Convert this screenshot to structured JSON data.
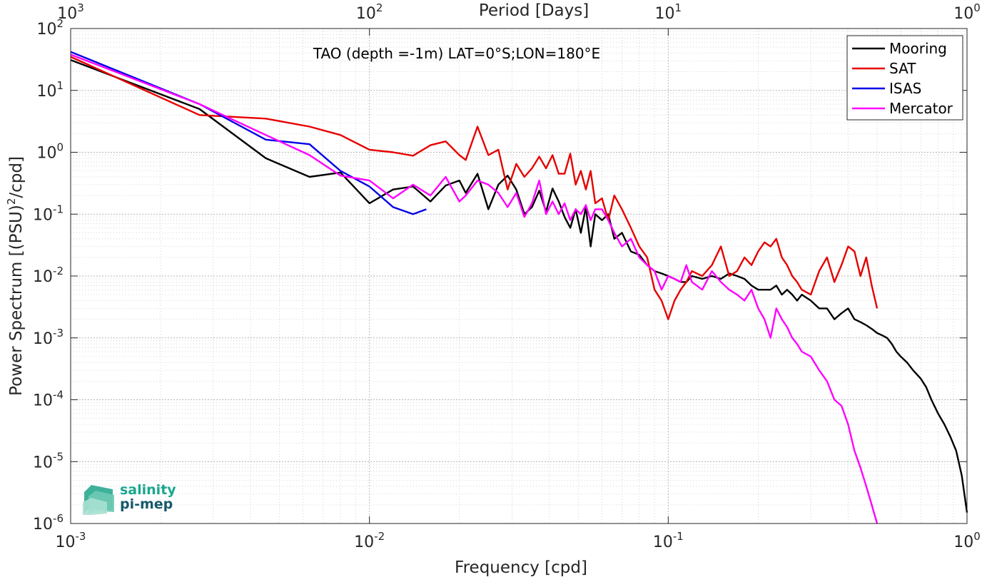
{
  "chart_data": {
    "type": "line",
    "title": "TAO (depth =-1m) LAT=0°S;LON=180°E",
    "xlabel": "Frequency [cpd]",
    "ylabel": "Power Spectrum [(PSU)",
    "ylabel_sup": "2",
    "ylabel_tail": "/cpd]",
    "top_xlabel": "Period [Days]",
    "x_scale": "log",
    "y_scale": "log",
    "xlim": [
      0.001,
      1
    ],
    "ylim": [
      1e-06,
      100
    ],
    "grid": true,
    "minor_grid": true,
    "legend_position": "top-right",
    "x_ticks": [
      {
        "value": 0.001,
        "base": "10",
        "exp": "-3"
      },
      {
        "value": 0.01,
        "base": "10",
        "exp": "-2"
      },
      {
        "value": 0.1,
        "base": "10",
        "exp": "-1"
      },
      {
        "value": 1,
        "base": "10",
        "exp": "0"
      }
    ],
    "y_ticks": [
      {
        "value": 100,
        "base": "10",
        "exp": "2"
      },
      {
        "value": 10,
        "base": "10",
        "exp": "1"
      },
      {
        "value": 1,
        "base": "10",
        "exp": "0"
      },
      {
        "value": 0.1,
        "base": "10",
        "exp": "-1"
      },
      {
        "value": 0.01,
        "base": "10",
        "exp": "-2"
      },
      {
        "value": 0.001,
        "base": "10",
        "exp": "-3"
      },
      {
        "value": 0.0001,
        "base": "10",
        "exp": "-4"
      },
      {
        "value": 1e-05,
        "base": "10",
        "exp": "-5"
      },
      {
        "value": 1e-06,
        "base": "10",
        "exp": "-6"
      }
    ],
    "top_ticks": [
      {
        "value": 0.001,
        "base": "10",
        "exp": "3"
      },
      {
        "value": 0.01,
        "base": "10",
        "exp": "2"
      },
      {
        "value": 0.1,
        "base": "10",
        "exp": "1"
      },
      {
        "value": 1,
        "base": "10",
        "exp": "0"
      }
    ],
    "series": [
      {
        "name": "Mooring",
        "color": "#000000",
        "x": [
          0.001,
          0.0027,
          0.0045,
          0.0063,
          0.008,
          0.01,
          0.012,
          0.014,
          0.016,
          0.018,
          0.02,
          0.021,
          0.023,
          0.025,
          0.027,
          0.029,
          0.031,
          0.033,
          0.035,
          0.037,
          0.039,
          0.041,
          0.043,
          0.045,
          0.047,
          0.049,
          0.051,
          0.053,
          0.055,
          0.057,
          0.06,
          0.063,
          0.066,
          0.07,
          0.075,
          0.08,
          0.085,
          0.09,
          0.095,
          0.1,
          0.105,
          0.11,
          0.115,
          0.12,
          0.13,
          0.14,
          0.15,
          0.16,
          0.17,
          0.18,
          0.19,
          0.2,
          0.21,
          0.22,
          0.23,
          0.24,
          0.25,
          0.26,
          0.27,
          0.28,
          0.3,
          0.32,
          0.34,
          0.36,
          0.38,
          0.4,
          0.42,
          0.44,
          0.46,
          0.48,
          0.5,
          0.52,
          0.54,
          0.56,
          0.58,
          0.6,
          0.63,
          0.66,
          0.7,
          0.73,
          0.76,
          0.8,
          0.84,
          0.88,
          0.92,
          0.96,
          1.0
        ],
        "y": [
          31,
          5.0,
          0.8,
          0.4,
          0.47,
          0.15,
          0.25,
          0.28,
          0.16,
          0.29,
          0.35,
          0.22,
          0.45,
          0.12,
          0.3,
          0.42,
          0.25,
          0.1,
          0.13,
          0.24,
          0.11,
          0.26,
          0.16,
          0.09,
          0.06,
          0.12,
          0.05,
          0.13,
          0.03,
          0.1,
          0.08,
          0.1,
          0.04,
          0.05,
          0.025,
          0.022,
          0.015,
          0.012,
          0.011,
          0.01,
          0.009,
          0.008,
          0.008,
          0.01,
          0.009,
          0.01,
          0.009,
          0.011,
          0.01,
          0.009,
          0.007,
          0.006,
          0.006,
          0.006,
          0.007,
          0.005,
          0.006,
          0.005,
          0.004,
          0.005,
          0.004,
          0.003,
          0.003,
          0.002,
          0.0025,
          0.003,
          0.002,
          0.0018,
          0.0016,
          0.0014,
          0.0012,
          0.0011,
          0.001,
          0.0008,
          0.0006,
          0.0005,
          0.0004,
          0.0003,
          0.00022,
          0.00016,
          0.0001,
          6e-05,
          4e-05,
          2.5e-05,
          1.5e-05,
          6e-06,
          1.5e-06
        ]
      },
      {
        "name": "SAT",
        "color": "#e60000",
        "x": [
          0.001,
          0.0027,
          0.0045,
          0.0063,
          0.008,
          0.01,
          0.012,
          0.014,
          0.016,
          0.018,
          0.02,
          0.021,
          0.023,
          0.025,
          0.027,
          0.029,
          0.031,
          0.033,
          0.035,
          0.037,
          0.039,
          0.041,
          0.043,
          0.045,
          0.047,
          0.049,
          0.051,
          0.053,
          0.055,
          0.057,
          0.06,
          0.063,
          0.066,
          0.07,
          0.075,
          0.08,
          0.085,
          0.09,
          0.095,
          0.1,
          0.105,
          0.11,
          0.115,
          0.12,
          0.13,
          0.14,
          0.15,
          0.16,
          0.17,
          0.18,
          0.19,
          0.2,
          0.21,
          0.22,
          0.23,
          0.24,
          0.25,
          0.26,
          0.27,
          0.28,
          0.3,
          0.32,
          0.34,
          0.36,
          0.38,
          0.4,
          0.42,
          0.44,
          0.46,
          0.48,
          0.5
        ],
        "y": [
          35,
          4.0,
          3.5,
          2.6,
          1.9,
          1.1,
          1.0,
          0.88,
          1.3,
          1.5,
          0.9,
          0.75,
          2.6,
          0.9,
          1.1,
          0.25,
          0.65,
          0.4,
          0.55,
          0.85,
          0.55,
          0.9,
          0.45,
          0.45,
          0.95,
          0.3,
          0.5,
          0.25,
          0.5,
          0.15,
          0.18,
          0.08,
          0.2,
          0.12,
          0.06,
          0.03,
          0.02,
          0.006,
          0.004,
          0.002,
          0.004,
          0.006,
          0.008,
          0.012,
          0.01,
          0.015,
          0.03,
          0.01,
          0.012,
          0.02,
          0.015,
          0.025,
          0.035,
          0.03,
          0.04,
          0.02,
          0.015,
          0.01,
          0.008,
          0.006,
          0.005,
          0.012,
          0.02,
          0.008,
          0.015,
          0.03,
          0.025,
          0.01,
          0.02,
          0.007,
          0.003
        ]
      },
      {
        "name": "ISAS",
        "color": "#0000e6",
        "x": [
          0.001,
          0.0027,
          0.0045,
          0.0063,
          0.008,
          0.01,
          0.012,
          0.014,
          0.0155
        ],
        "y": [
          42,
          6.0,
          1.6,
          1.35,
          0.5,
          0.28,
          0.13,
          0.1,
          0.12
        ]
      },
      {
        "name": "Mercator",
        "color": "#ff00ff",
        "x": [
          0.001,
          0.0027,
          0.0045,
          0.0063,
          0.008,
          0.01,
          0.012,
          0.014,
          0.016,
          0.018,
          0.02,
          0.021,
          0.023,
          0.025,
          0.027,
          0.029,
          0.031,
          0.033,
          0.035,
          0.037,
          0.039,
          0.041,
          0.043,
          0.045,
          0.047,
          0.049,
          0.051,
          0.053,
          0.055,
          0.057,
          0.06,
          0.063,
          0.066,
          0.07,
          0.075,
          0.08,
          0.085,
          0.09,
          0.095,
          0.1,
          0.105,
          0.11,
          0.115,
          0.12,
          0.13,
          0.14,
          0.15,
          0.16,
          0.17,
          0.18,
          0.19,
          0.2,
          0.21,
          0.22,
          0.23,
          0.24,
          0.25,
          0.26,
          0.27,
          0.28,
          0.3,
          0.32,
          0.34,
          0.36,
          0.38,
          0.4,
          0.42,
          0.44,
          0.46,
          0.48,
          0.5
        ],
        "y": [
          38,
          6.0,
          1.9,
          0.9,
          0.42,
          0.35,
          0.18,
          0.3,
          0.2,
          0.4,
          0.16,
          0.2,
          0.35,
          0.3,
          0.22,
          0.13,
          0.22,
          0.09,
          0.15,
          0.35,
          0.1,
          0.16,
          0.1,
          0.15,
          0.08,
          0.12,
          0.1,
          0.14,
          0.08,
          0.12,
          0.12,
          0.08,
          0.05,
          0.03,
          0.04,
          0.02,
          0.015,
          0.012,
          0.006,
          0.01,
          0.009,
          0.008,
          0.015,
          0.008,
          0.006,
          0.012,
          0.008,
          0.006,
          0.005,
          0.004,
          0.006,
          0.003,
          0.002,
          0.001,
          0.003,
          0.002,
          0.0015,
          0.001,
          0.0008,
          0.0006,
          0.0005,
          0.0003,
          0.0002,
          0.0001,
          8e-05,
          4e-05,
          1.5e-05,
          8e-06,
          4e-06,
          2e-06,
          1e-06
        ]
      }
    ]
  },
  "logo": {
    "line1": "salinity",
    "line2": "pi-mep",
    "color1": "#1aa68f",
    "color2": "#16596a"
  }
}
